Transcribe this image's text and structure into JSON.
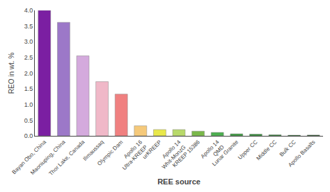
{
  "chart_data": {
    "type": "bar",
    "xlabel": "REE source",
    "ylabel": "REO in wt. %",
    "categories": [
      "Bayan Obo, China",
      "Maoniuping, China",
      "Thor Lake, Canada",
      "Ilimaussaq",
      "Olympic Dam",
      "Apollo 16\nUltra-KREEP",
      "urKREEP",
      "Apollo 14\nWhit-MonzG",
      "KREEP 15386",
      "Apollo 14\nQMD",
      "Lunar Granite",
      "Upper CC",
      "Middle CC",
      "Bulk CC",
      "Apollo Basalts"
    ],
    "values": [
      4.0,
      3.62,
      2.55,
      1.73,
      1.33,
      0.32,
      0.2,
      0.2,
      0.15,
      0.11,
      0.065,
      0.055,
      0.035,
      0.022,
      0.025
    ],
    "colors": [
      "#7b1fa2",
      "#9c78c8",
      "#d4aadd",
      "#f0b8c8",
      "#f08080",
      "#f5c97a",
      "#e8e84a",
      "#b8d96a",
      "#7ab84a",
      "#4caf50",
      "#3d9940",
      "#388e3c",
      "#2e7d32",
      "#1b5e20",
      "#1a4a1a"
    ],
    "ylim": [
      0,
      4.0
    ],
    "yticks": [
      {
        "value": 0.0,
        "label": "0.0"
      },
      0.5,
      {
        "value": 1.0,
        "label": "1.0"
      },
      1.5,
      {
        "value": 2.0,
        "label": "2.0"
      },
      2.5,
      {
        "value": 3.0,
        "label": "3.0"
      },
      3.5,
      {
        "value": 4.0,
        "label": "4.0"
      }
    ],
    "grid": false
  }
}
